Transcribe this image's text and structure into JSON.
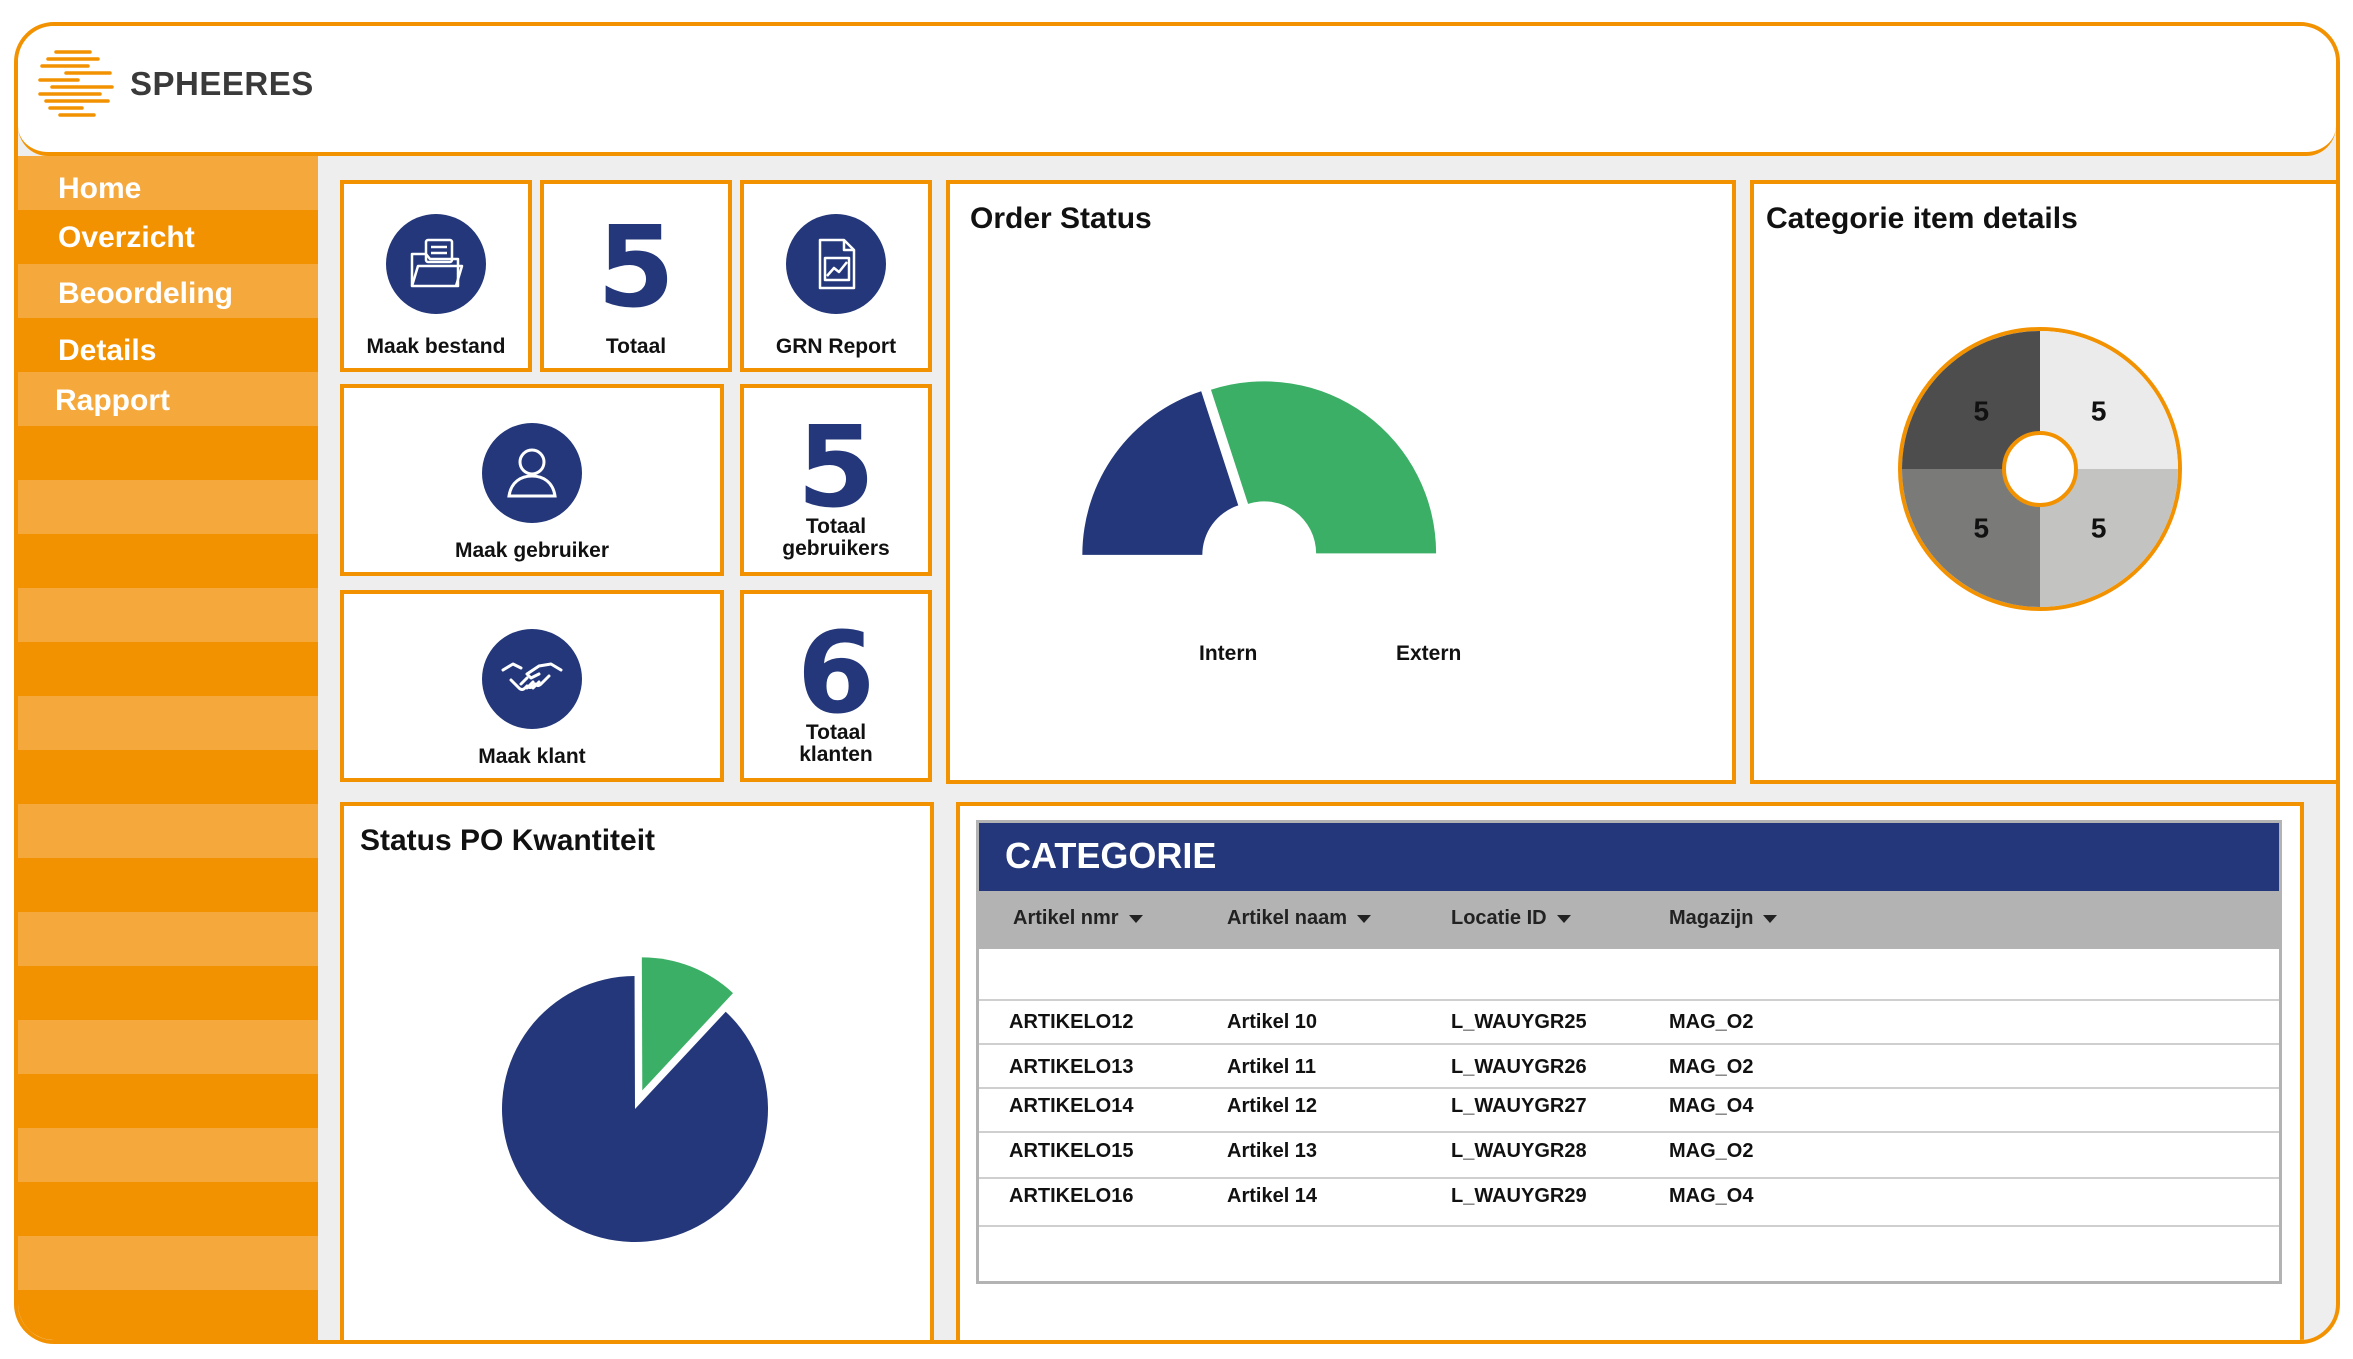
{
  "app": {
    "name": "SPHEERES"
  },
  "sidebar": {
    "items": [
      {
        "label": "Home"
      },
      {
        "label": "Overzicht"
      },
      {
        "label": "Beoordeling"
      },
      {
        "label": "Details"
      },
      {
        "label": "Rapport"
      }
    ]
  },
  "tiles": {
    "maak_bestand": "Maak bestand",
    "totaal_value": "5",
    "totaal_label": "Totaal",
    "grn_report": "GRN Report",
    "maak_gebruiker": "Maak gebruiker",
    "totaal_gebruikers_value": "5",
    "totaal_gebruikers_label_1": "Totaal",
    "totaal_gebruikers_label_2": "gebruikers",
    "maak_klant": "Maak klant",
    "totaal_klanten_value": "6",
    "totaal_klanten_label_1": "Totaal",
    "totaal_klanten_label_2": "klanten"
  },
  "order_status": {
    "title": "Order Status",
    "labels": [
      "Intern",
      "Extern"
    ]
  },
  "categorie_item": {
    "title": "Categorie item details",
    "values": [
      "5",
      "5",
      "5",
      "5"
    ]
  },
  "status_po": {
    "title": "Status PO Kwantiteit"
  },
  "categorie_table": {
    "title": "CATEGORIE",
    "columns": [
      "Artikel nmr",
      "Artikel naam",
      "Locatie ID",
      "Magazijn"
    ],
    "rows": [
      [
        "ARTIKELO12",
        "Artikel 10",
        "L_WAUYGR25",
        "MAG_O2"
      ],
      [
        "ARTIKELO13",
        "Artikel 11",
        "L_WAUYGR26",
        "MAG_O2"
      ],
      [
        "ARTIKELO14",
        "Artikel 12",
        "L_WAUYGR27",
        "MAG_O4"
      ],
      [
        "ARTIKELO15",
        "Artikel 13",
        "L_WAUYGR28",
        "MAG_O2"
      ],
      [
        "ARTIKELO16",
        "Artikel 14",
        "L_WAUYGR29",
        "MAG_O4"
      ]
    ]
  },
  "colors": {
    "accent": "#f39200",
    "accent_light": "#f5a93c",
    "navy": "#23377a",
    "green": "#3aaf65"
  },
  "chart_data": [
    {
      "type": "pie",
      "subtype": "half-donut",
      "title": "Order Status",
      "labels": [
        "Intern",
        "Extern"
      ],
      "values": [
        40,
        60
      ],
      "colors": [
        "#23377a",
        "#3aaf65"
      ]
    },
    {
      "type": "pie",
      "subtype": "donut",
      "title": "Categorie item details",
      "values": [
        5,
        5,
        5,
        5
      ],
      "colors": [
        "#ebebeb",
        "#c3c3c1",
        "#7a7a79",
        "#4d4d4d"
      ]
    },
    {
      "type": "pie",
      "title": "Status PO Kwantiteit",
      "values": [
        88,
        12
      ],
      "colors": [
        "#23377a",
        "#3aaf65"
      ]
    }
  ]
}
